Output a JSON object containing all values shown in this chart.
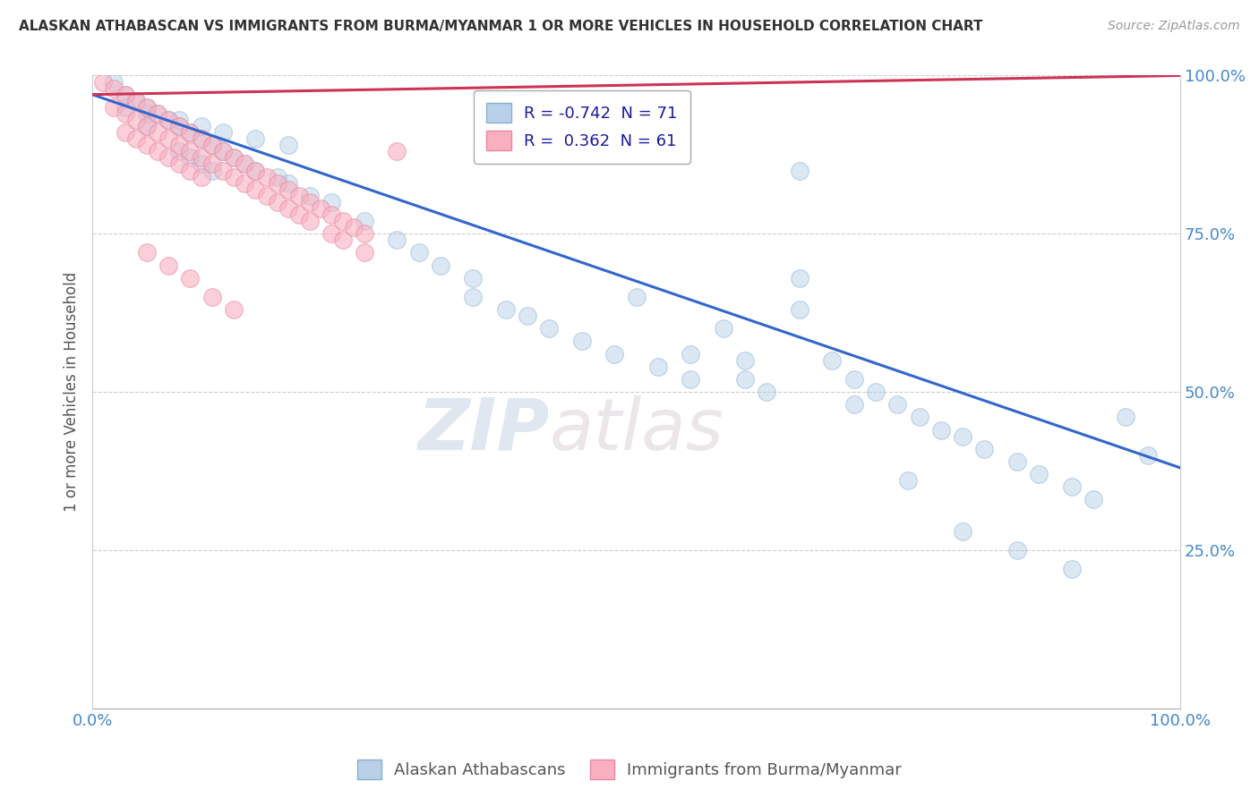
{
  "title": "ALASKAN ATHABASCAN VS IMMIGRANTS FROM BURMA/MYANMAR 1 OR MORE VEHICLES IN HOUSEHOLD CORRELATION CHART",
  "source": "Source: ZipAtlas.com",
  "ylabel": "1 or more Vehicles in Household",
  "xlim": [
    0,
    100
  ],
  "ylim": [
    0,
    100
  ],
  "x_tick_labels": [
    "0.0%",
    "",
    "",
    "",
    "100.0%"
  ],
  "x_tick_vals": [
    0,
    25,
    50,
    75,
    100
  ],
  "y_tick_vals": [
    0,
    25,
    50,
    75,
    100
  ],
  "y_tick_labels": [
    "",
    "25.0%",
    "50.0%",
    "75.0%",
    "100.0%"
  ],
  "legend_labels": [
    "Alaskan Athabascans",
    "Immigrants from Burma/Myanmar"
  ],
  "blue_color": "#b8d0e8",
  "blue_edge": "#8ab0d0",
  "pink_color": "#f8b0c0",
  "pink_edge": "#e888a0",
  "blue_line_color": "#3366cc",
  "pink_line_color": "#cc3355",
  "R_blue": -0.742,
  "N_blue": 71,
  "R_pink": 0.362,
  "N_pink": 61,
  "background_color": "#ffffff",
  "grid_color": "#cccccc",
  "title_color": "#333333",
  "axis_label_color": "#555555",
  "tick_label_color": "#4488cc",
  "watermark_zip": "ZIP",
  "watermark_atlas": "atlas",
  "blue_line_start_y": 97,
  "blue_line_end_y": 38,
  "pink_line_start_y": 97,
  "pink_line_end_y": 100,
  "blue_x": [
    2,
    3,
    4,
    5,
    5,
    6,
    7,
    8,
    8,
    9,
    9,
    10,
    10,
    11,
    11,
    12,
    13,
    14,
    15,
    17,
    18,
    20,
    22,
    25,
    28,
    30,
    32,
    35,
    35,
    38,
    40,
    42,
    45,
    48,
    50,
    52,
    55,
    58,
    60,
    62,
    65,
    65,
    68,
    70,
    72,
    74,
    76,
    78,
    80,
    82,
    85,
    87,
    90,
    92,
    95,
    97,
    3,
    5,
    8,
    10,
    12,
    15,
    18,
    55,
    60,
    65,
    70,
    75,
    80,
    85,
    90
  ],
  "blue_y": [
    99,
    97,
    96,
    95,
    92,
    94,
    93,
    92,
    88,
    91,
    87,
    90,
    86,
    89,
    85,
    88,
    87,
    86,
    85,
    84,
    83,
    81,
    80,
    77,
    74,
    72,
    70,
    68,
    65,
    63,
    62,
    60,
    58,
    56,
    65,
    54,
    52,
    60,
    55,
    50,
    68,
    63,
    55,
    52,
    50,
    48,
    46,
    44,
    43,
    41,
    39,
    37,
    35,
    33,
    46,
    40,
    95,
    94,
    93,
    92,
    91,
    90,
    89,
    56,
    52,
    85,
    48,
    36,
    28,
    25,
    22
  ],
  "pink_x": [
    1,
    2,
    2,
    3,
    3,
    3,
    4,
    4,
    4,
    5,
    5,
    5,
    6,
    6,
    6,
    7,
    7,
    7,
    8,
    8,
    8,
    9,
    9,
    9,
    10,
    10,
    10,
    11,
    11,
    12,
    12,
    13,
    13,
    14,
    14,
    15,
    15,
    16,
    16,
    17,
    17,
    18,
    18,
    19,
    19,
    20,
    20,
    21,
    22,
    22,
    23,
    23,
    24,
    25,
    25,
    5,
    7,
    9,
    11,
    13,
    28
  ],
  "pink_y": [
    99,
    98,
    95,
    97,
    94,
    91,
    96,
    93,
    90,
    95,
    92,
    89,
    94,
    91,
    88,
    93,
    90,
    87,
    92,
    89,
    86,
    91,
    88,
    85,
    90,
    87,
    84,
    89,
    86,
    88,
    85,
    87,
    84,
    86,
    83,
    85,
    82,
    84,
    81,
    83,
    80,
    82,
    79,
    81,
    78,
    80,
    77,
    79,
    78,
    75,
    77,
    74,
    76,
    75,
    72,
    72,
    70,
    68,
    65,
    63,
    88
  ]
}
